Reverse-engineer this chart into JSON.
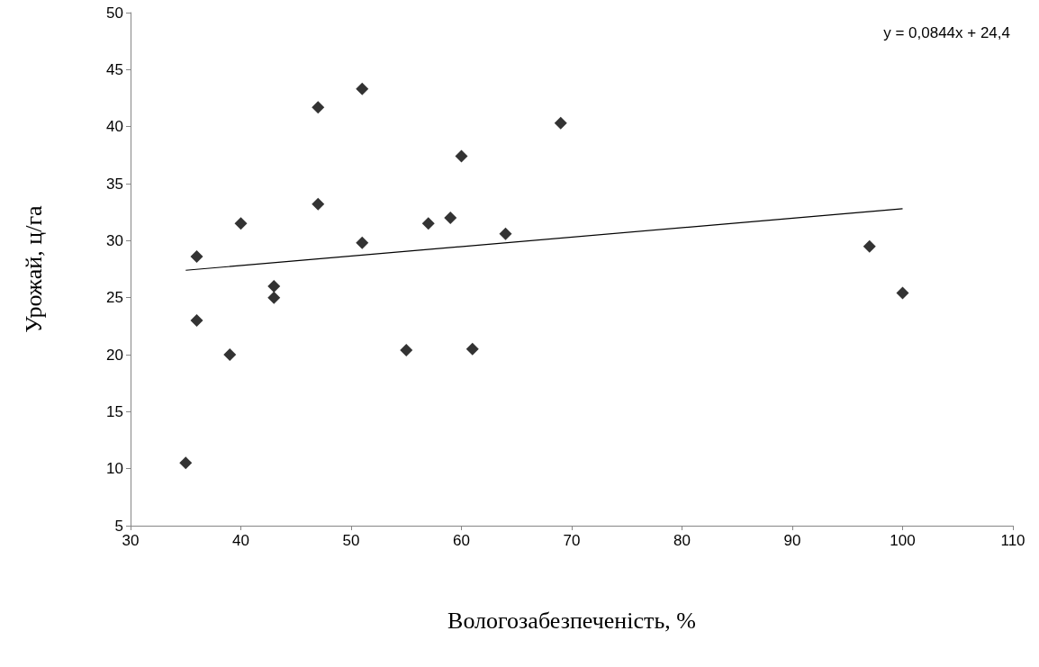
{
  "chart_data": {
    "type": "scatter",
    "xlabel": "Вологозабезпеченість, %",
    "ylabel": "Урожай, ц/га",
    "xlim": [
      30,
      110
    ],
    "xticks": [
      30,
      40,
      50,
      60,
      70,
      80,
      90,
      100,
      110
    ],
    "ylim": [
      5,
      50
    ],
    "yticks": [
      5,
      10,
      15,
      20,
      25,
      30,
      35,
      40,
      45,
      50
    ],
    "grid": false,
    "marker": "diamond",
    "annotations": [
      "y = 0,0844x + 24,4"
    ],
    "series": [
      {
        "color": "#000000",
        "x": [
          35,
          36,
          36,
          39,
          40,
          43,
          43,
          47,
          47,
          51,
          51,
          55,
          57,
          59,
          60,
          61,
          64,
          69,
          97,
          100
        ],
        "values": [
          10.5,
          28.6,
          23,
          20,
          31.5,
          26,
          25,
          41.7,
          33.2,
          43.3,
          29.8,
          20.4,
          31.5,
          32,
          37.4,
          20.5,
          30.6,
          40.3,
          29.5,
          25.4
        ]
      },
      {
        "type": "line",
        "color": "#000000",
        "marker": "none",
        "x": [
          35,
          100
        ],
        "values": [
          27.4,
          32.8
        ]
      }
    ]
  }
}
